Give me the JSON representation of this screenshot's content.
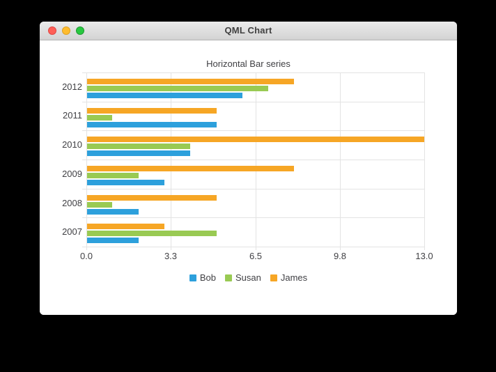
{
  "window": {
    "title": "QML Chart",
    "buttons": [
      {
        "name": "close-button",
        "color": "#ff5f57",
        "border": "#df4744"
      },
      {
        "name": "minimize-button",
        "color": "#febc2e",
        "border": "#dea123"
      },
      {
        "name": "maximize-button",
        "color": "#28c840",
        "border": "#1f9a31"
      }
    ]
  },
  "chart_data": {
    "type": "bar",
    "orientation": "horizontal",
    "title": "Horizontal Bar series",
    "categories": [
      "2007",
      "2008",
      "2009",
      "2010",
      "2011",
      "2012"
    ],
    "category_display": "2012 at top, 2007 at bottom",
    "series": [
      {
        "name": "Bob",
        "color": "#2da0dc",
        "values": [
          2,
          2,
          3,
          4,
          5,
          6
        ]
      },
      {
        "name": "Susan",
        "color": "#99ca53",
        "values": [
          5,
          1,
          2,
          4,
          1,
          7
        ]
      },
      {
        "name": "James",
        "color": "#f6a625",
        "values": [
          3,
          5,
          8,
          13,
          5,
          8
        ]
      }
    ],
    "series_display": "within each category group, top to bottom: James, Susan, Bob",
    "xlim": [
      0,
      13
    ],
    "x_ticks": [
      "0.0",
      "3.3",
      "6.5",
      "9.8",
      "13.0"
    ],
    "grid": true,
    "grid_color": "#e3e3e3",
    "label_color": "#404044",
    "legend": {
      "position": "bottom",
      "entries": [
        "Bob",
        "Susan",
        "James"
      ]
    }
  }
}
